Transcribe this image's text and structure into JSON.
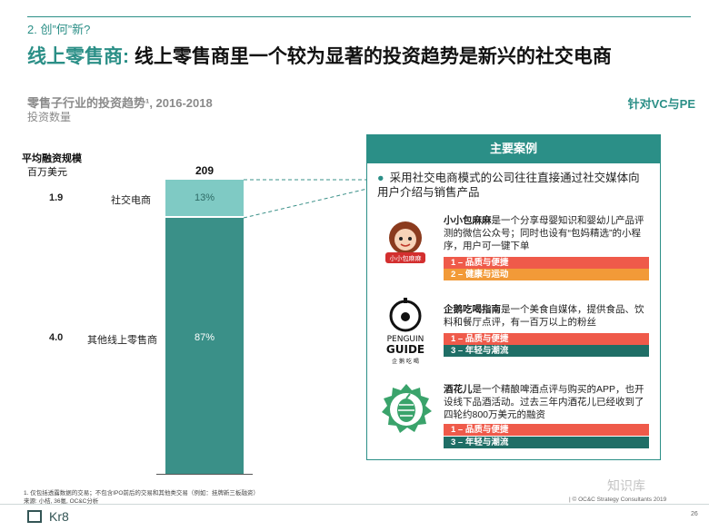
{
  "section": "2. 创”何”新?",
  "title": {
    "highlight": "线上零售商:",
    "rest": " 线上零售商里一个较为显著的投资趋势是新兴的社交电商"
  },
  "subtitle": {
    "line1": "零售子行业的投资趋势¹, 2016-2018",
    "line2": "投资数量"
  },
  "audience": "针对VC与PE",
  "chart_data": {
    "type": "bar",
    "categories": [
      "社交电商",
      "其他线上零售商"
    ],
    "series": [
      {
        "values": [
          13,
          87
        ]
      }
    ],
    "data_labels": [
      "13%",
      "87%"
    ],
    "total": "209",
    "avg_financing": [
      "1.9",
      "4.0"
    ],
    "ylabel_line1": "平均融资规模",
    "ylabel_line2": "百万美元",
    "stacked": true
  },
  "panel": {
    "header": "主要案例",
    "bullet": "采用社交电商模式的公司往往直接通过社交媒体向用户介绍与销售产品",
    "cases": [
      {
        "name": "小小包麻麻",
        "desc": "是一个分享母婴知识和婴幼儿产品评测的微信公众号；同时也设有“包妈精选”的小程序，用户可一键下单",
        "tags": [
          "1 – 品质与便捷",
          "2 – 健康与运动"
        ],
        "logo_text": "小小包麻麻"
      },
      {
        "name": "企鹅吃喝指南",
        "desc": "是一个美食自媒体，提供食品、饮料和餐厅点评，有一百万以上的粉丝",
        "tags": [
          "1 – 品质与便捷",
          "3 – 年轻与潮流"
        ],
        "logo_text": [
          "PENGUIN",
          "GUIDE",
          "企 鹅 吃 喝"
        ]
      },
      {
        "name": "酒花儿",
        "desc": "是一个精酿啤酒点评与购买的APP，也开设线下品酒活动。过去三年内酒花儿已经收到了四轮约800万美元的融资",
        "tags": [
          "1 – 品质与便捷",
          "3 – 年轻与潮流"
        ]
      }
    ]
  },
  "footnote": "1. 仅包括透露数据的交易；不包含IPO前后的交易和其他类交易（例如：挂牌新三板融资）",
  "source": "来源: 小桔, 36氪, OC&C分析",
  "brand": "Kr8",
  "copyright": "| © OC&C Strategy Consultants 2019",
  "page": "26",
  "watermark": "知识库"
}
